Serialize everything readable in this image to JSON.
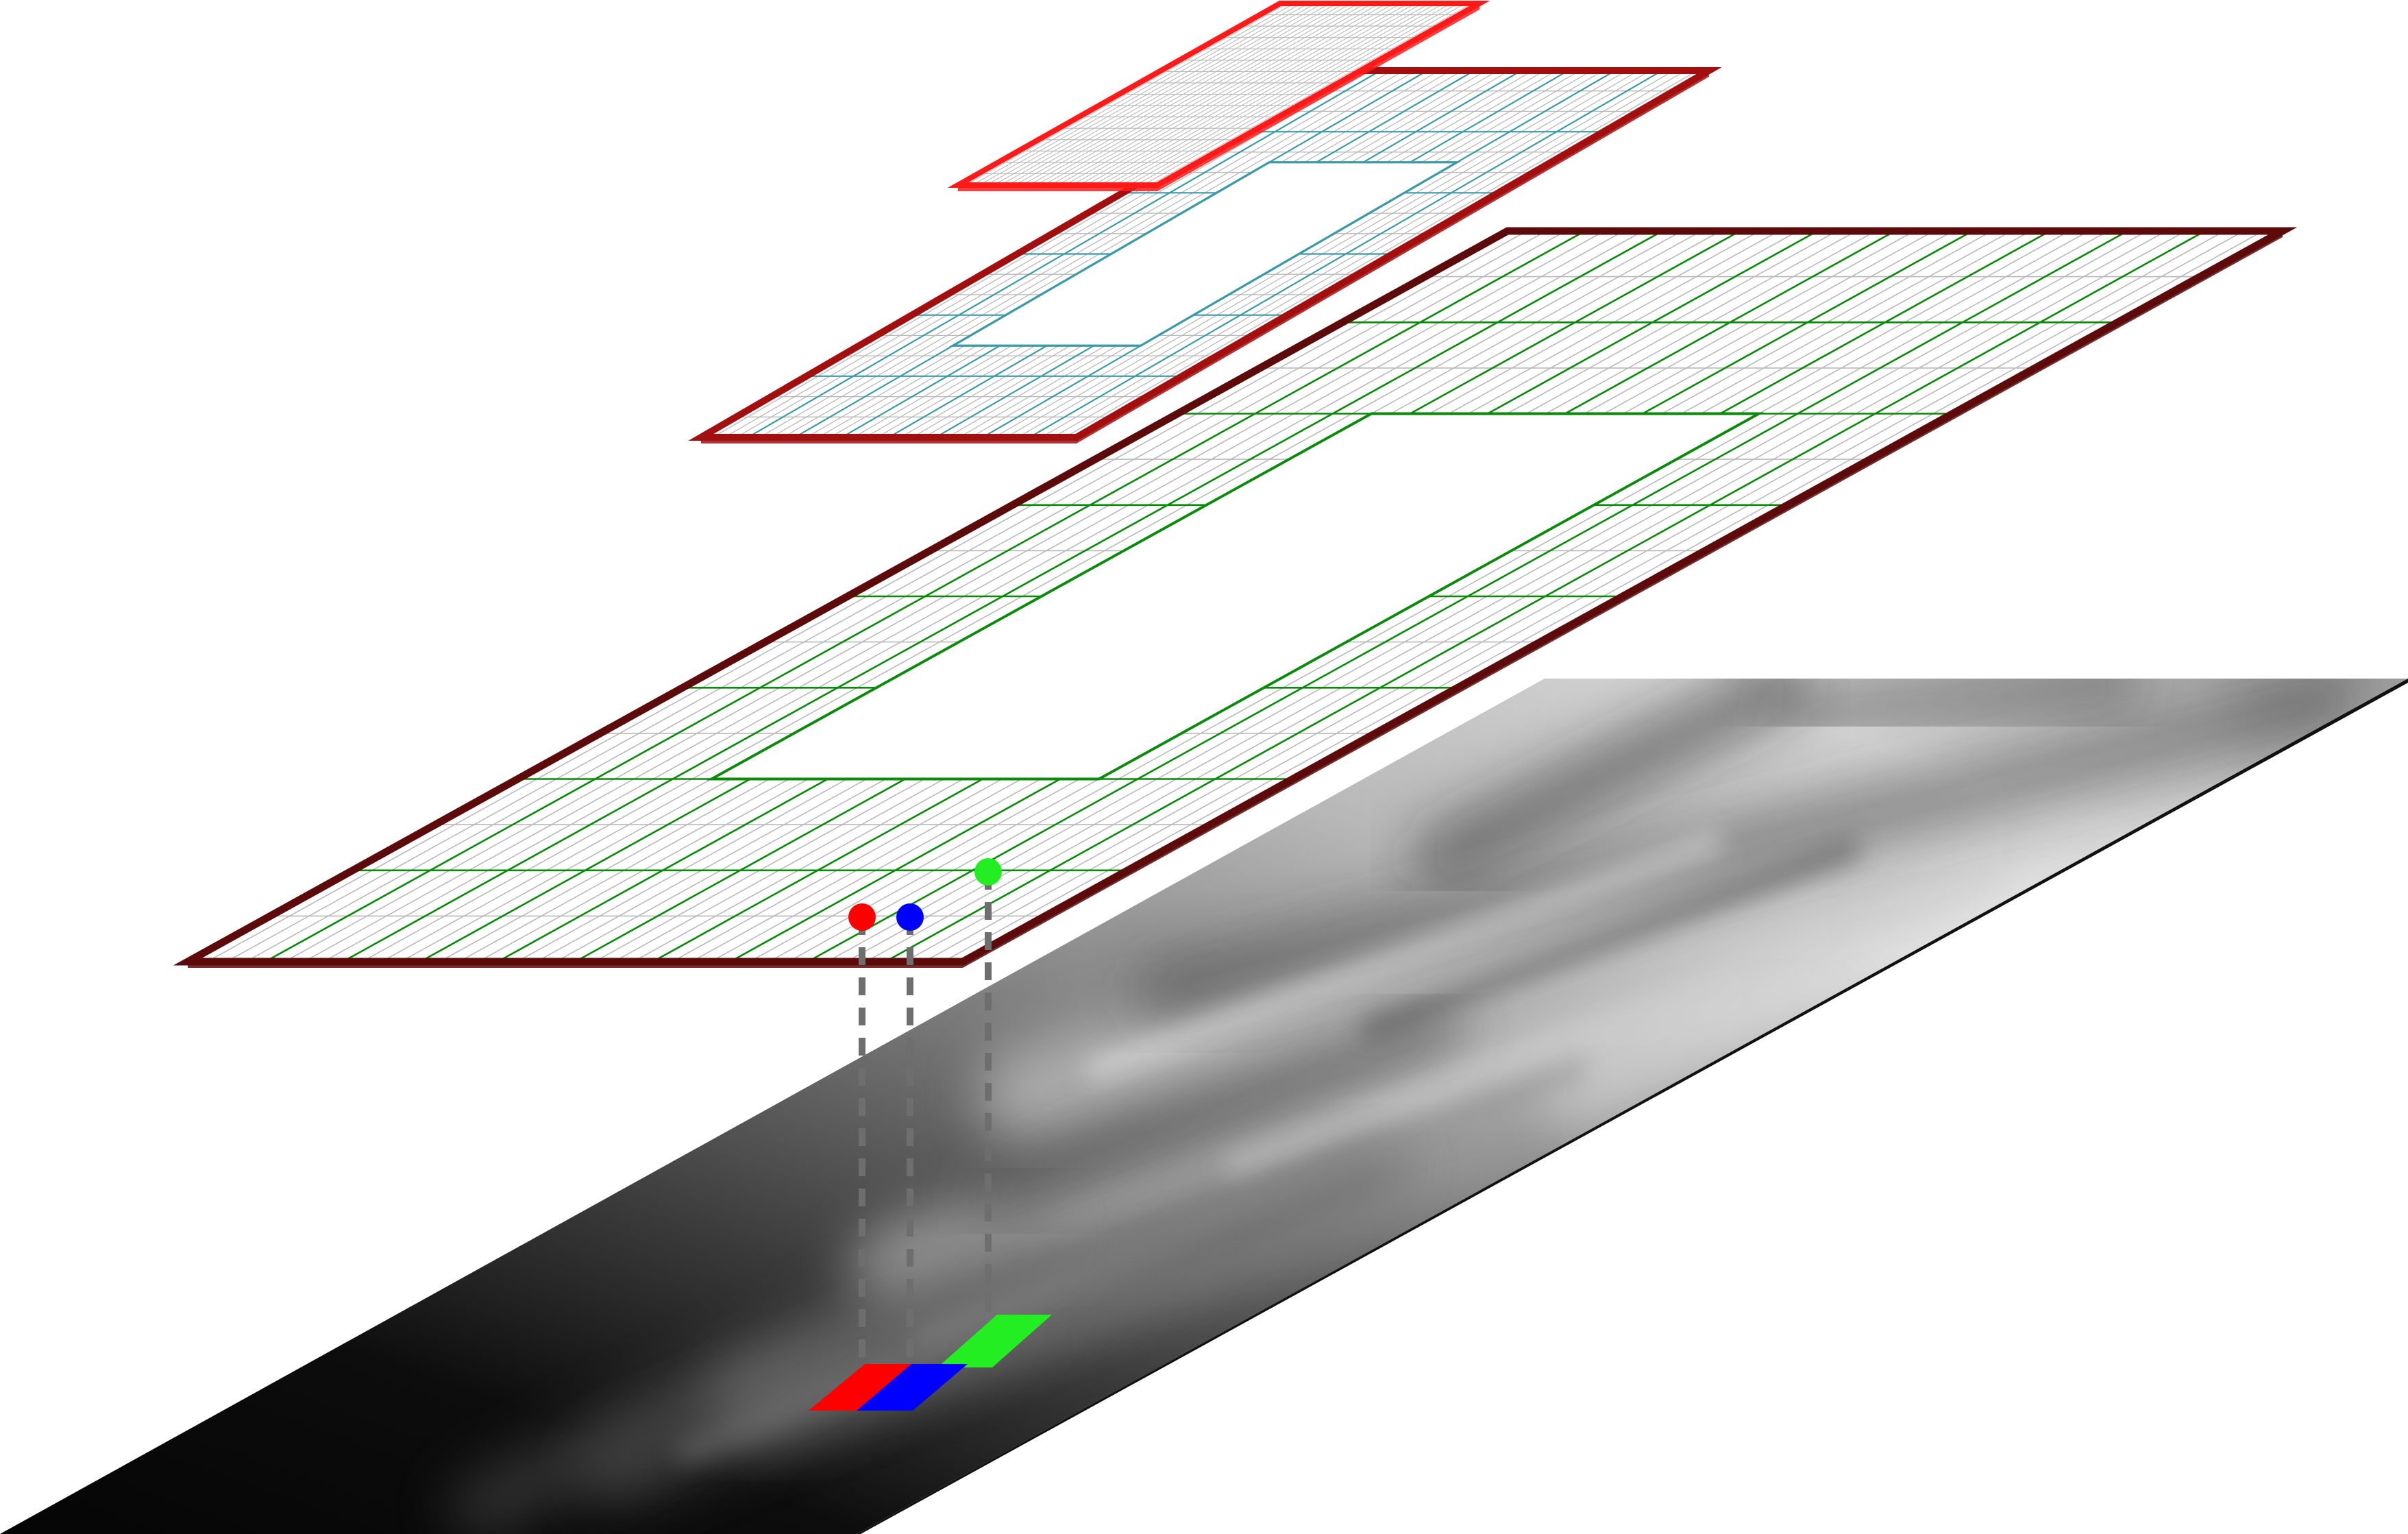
{
  "diagram": {
    "description_text": "",
    "colors": {
      "background": "#ffffff",
      "fine_grid": "#b9b9b9",
      "coarse_grid_green": "#0a8a0a",
      "middle_grid_teal": "#3c9aa8",
      "frame_level_0": "#5c0a0a",
      "frame_level_1": "#a30f0f",
      "frame_level_2": "#ff1a1a",
      "probe_red": "#ff0000",
      "probe_blue": "#0000ff",
      "probe_green": "#22ee22",
      "dashed_connector": "#707070",
      "terrain_dark": "#050505",
      "terrain_light": "#e8e8e8"
    },
    "layers": [
      {
        "id": "terrain-plane",
        "kind": "heightmap"
      },
      {
        "id": "grid-level-0",
        "kind": "coarse-grid",
        "hole": true
      },
      {
        "id": "grid-level-1",
        "kind": "middle-grid",
        "hole": true
      },
      {
        "id": "grid-level-2",
        "kind": "fine-grid",
        "hole": false
      }
    ],
    "probes": [
      {
        "name": "red",
        "color": "#ff0000"
      },
      {
        "name": "blue",
        "color": "#0000ff"
      },
      {
        "name": "green",
        "color": "#22ee22"
      }
    ]
  }
}
